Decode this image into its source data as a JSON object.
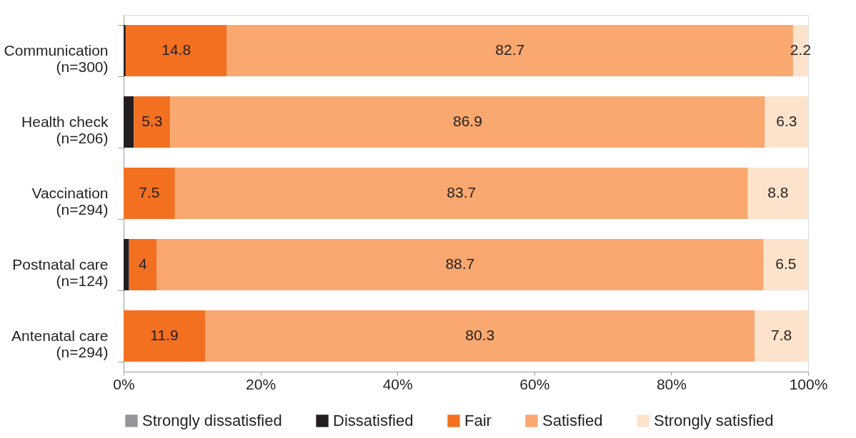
{
  "chart_data": {
    "type": "bar",
    "orientation": "horizontal",
    "stacked": true,
    "categories": [
      "Communication\n(n=300)",
      "Health check\n(n=206)",
      "Vaccination\n(n=294)",
      "Postnatal care\n(n=124)",
      "Antenatal care\n(n=294)"
    ],
    "series": [
      {
        "name": "Strongly dissatisfied",
        "color": "#939598",
        "values": [
          0,
          0,
          0,
          0,
          0
        ],
        "value_labels": [
          null,
          null,
          null,
          null,
          null
        ]
      },
      {
        "name": "Dissatisfied",
        "color": "#231f20",
        "values": [
          0.3,
          1.5,
          0,
          0.8,
          0
        ],
        "value_labels": [
          null,
          null,
          null,
          null,
          null
        ]
      },
      {
        "name": "Fair",
        "color": "#f37021",
        "values": [
          14.8,
          5.3,
          7.5,
          4,
          11.9
        ],
        "value_labels": [
          "14.8",
          "5.3",
          "7.5",
          "4",
          "11.9"
        ]
      },
      {
        "name": "Satisfied",
        "color": "#f9a870",
        "values": [
          82.7,
          86.9,
          83.7,
          88.7,
          80.3
        ],
        "value_labels": [
          "82.7",
          "86.9",
          "83.7",
          "88.7",
          "80.3"
        ]
      },
      {
        "name": "Strongly satisfied",
        "color": "#fde3cb",
        "values": [
          2.2,
          6.3,
          8.8,
          6.5,
          7.8
        ],
        "value_labels": [
          "2.2",
          "6.3",
          "8.8",
          "6.5",
          "7.8"
        ]
      }
    ],
    "xlim": [
      0,
      100
    ],
    "xticks": [
      {
        "value": 0,
        "label": "0%"
      },
      {
        "value": 20,
        "label": "20%"
      },
      {
        "value": 40,
        "label": "40%"
      },
      {
        "value": 60,
        "label": "60%"
      },
      {
        "value": 80,
        "label": "80%"
      },
      {
        "value": 100,
        "label": "100%"
      }
    ],
    "grid": false,
    "legend": "bottom"
  }
}
